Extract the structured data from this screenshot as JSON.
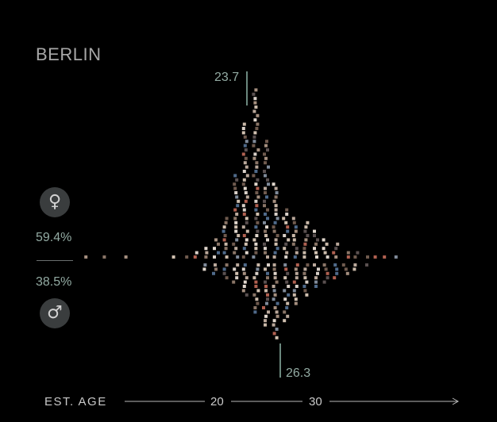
{
  "city": "BERLIN",
  "female": {
    "icon": "female-symbol-icon",
    "glyph": "♀",
    "percent": "59.4%"
  },
  "male": {
    "icon": "male-symbol-icon",
    "glyph": "♂",
    "percent": "38.5%"
  },
  "chart_data": {
    "type": "scatter",
    "title": "BERLIN",
    "xlabel": "EST. AGE",
    "xticks": [
      "20",
      "30"
    ],
    "x_range": [
      7,
      39
    ],
    "medians": {
      "female": "23.7",
      "male": "26.3"
    },
    "medians_value": {
      "female": 23.7,
      "male": 26.3
    },
    "series": [
      {
        "name": "female",
        "x": [
          7,
          9,
          11,
          16,
          17,
          18,
          19,
          20,
          21,
          22,
          23,
          24,
          25,
          26,
          27,
          28,
          29,
          30,
          31,
          32,
          33,
          34,
          35,
          36,
          37,
          38
        ],
        "counts": [
          1,
          1,
          1,
          1,
          1,
          2,
          3,
          5,
          10,
          20,
          32,
          40,
          28,
          18,
          12,
          10,
          9,
          7,
          5,
          4,
          2,
          2,
          1,
          1,
          1,
          1
        ]
      },
      {
        "name": "male",
        "x": [
          19,
          20,
          21,
          22,
          23,
          24,
          25,
          26,
          27,
          28,
          29,
          30,
          31,
          32,
          33,
          34,
          35
        ],
        "counts": [
          2,
          3,
          4,
          5,
          8,
          12,
          15,
          18,
          14,
          10,
          8,
          6,
          5,
          4,
          3,
          2,
          1
        ]
      }
    ],
    "colors": {
      "median_line": "#8fb5a8",
      "axis": "#b8b8b8",
      "dot_palette": [
        "#d8cfc7",
        "#b9a79a",
        "#8a7567",
        "#c9b8a8",
        "#6f5a4e",
        "#e0d6cc",
        "#a58f7f",
        "#7f8a99",
        "#5a5050",
        "#b06050",
        "#d0c0b0",
        "#4f6a8a"
      ]
    }
  }
}
